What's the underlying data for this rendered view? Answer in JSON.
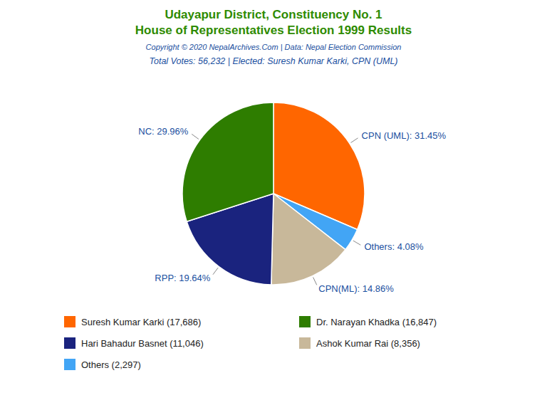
{
  "chart_data": {
    "type": "pie",
    "title": "Udayapur District, Constituency No. 1\nHouse of Representatives Election 1999 Results",
    "subtitle": "Total Votes: 56,232 | Elected: Suresh Kumar Karki, CPN (UML)",
    "annotations": [
      "Copyright © 2020 NepalArchives.Com | Data: Nepal Election Commission"
    ],
    "categories": [
      "CPN (UML)",
      "Others",
      "CPN(ML)",
      "RPP",
      "NC"
    ],
    "values": [
      31.45,
      4.08,
      14.86,
      19.64,
      29.96
    ],
    "value_labels": [
      "31.45%",
      "4.08%",
      "14.86%",
      "19.64%",
      "29.96%"
    ],
    "colors": [
      "#ff6600",
      "#42a5f5",
      "#c8b89a",
      "#1a237e",
      "#2e7d00"
    ],
    "data_labels": true,
    "legend_items": [
      {
        "label": "Suresh Kumar Karki (17,686)",
        "color": "#ff6600"
      },
      {
        "label": "Hari Bahadur Basnet (11,046)",
        "color": "#1a237e"
      },
      {
        "label": "Others (2,297)",
        "color": "#42a5f5"
      },
      {
        "label": "Dr. Narayan Khadka (16,847)",
        "color": "#2e7d00"
      },
      {
        "label": "Ashok Kumar Rai (8,356)",
        "color": "#c8b89a"
      }
    ]
  }
}
